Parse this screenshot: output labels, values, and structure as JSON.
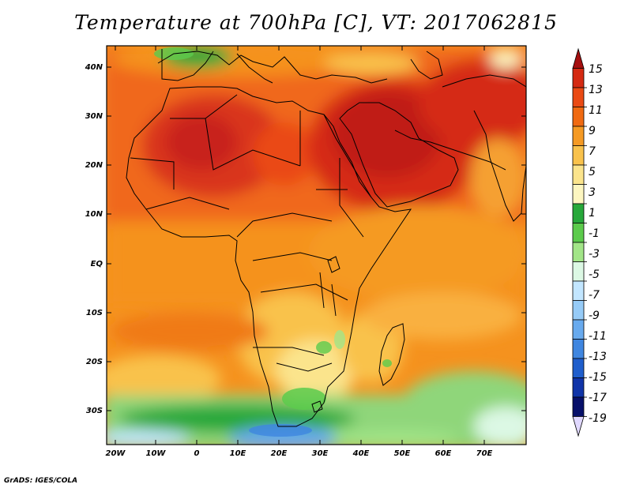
{
  "title": "Temperature at 700hPa [C], VT: 2017062815",
  "credit": "GrADS: IGES/COLA",
  "map": {
    "region": "Africa and Middle East",
    "lat_labels": [
      "40N",
      "30N",
      "20N",
      "10N",
      "EQ",
      "10S",
      "20S",
      "30S"
    ],
    "lon_labels": [
      "20W",
      "10W",
      "0",
      "10E",
      "20E",
      "30E",
      "40E",
      "50E",
      "60E",
      "70E"
    ]
  },
  "colorbar": {
    "labels": [
      "15",
      "13",
      "11",
      "9",
      "7",
      "5",
      "3",
      "1",
      "-1",
      "-3",
      "-5",
      "-7",
      "-9",
      "-11",
      "-13",
      "-15",
      "-17",
      "-19"
    ],
    "colors": [
      "#a50f0f",
      "#d52a12",
      "#ea4a14",
      "#f06a12",
      "#f59a24",
      "#f9c24c",
      "#fbe48c",
      "#fdf6c0",
      "#27a83a",
      "#5ccb4c",
      "#a2e588",
      "#dcf8e4",
      "#c2e6ff",
      "#96cbf7",
      "#68aaee",
      "#3f86e0",
      "#1f5ecc",
      "#1034a8",
      "#07106a",
      "#e0d8ff"
    ]
  }
}
